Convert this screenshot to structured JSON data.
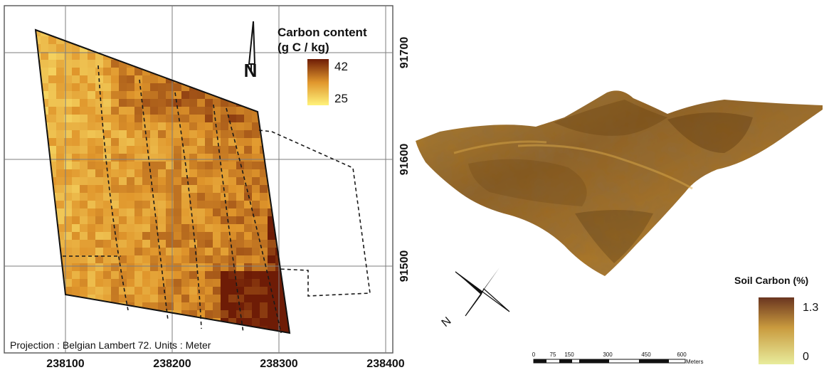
{
  "left_map": {
    "x_ticks": [
      "238100",
      "238200",
      "238300",
      "238400"
    ],
    "y_ticks": [
      "91700",
      "91600",
      "91500"
    ],
    "legend": {
      "title_line1": "Carbon content",
      "title_line2": "(g C / kg)",
      "max_label": "42",
      "min_label": "25",
      "min_color": "#fff27a",
      "mid_color": "#e0962c",
      "max_color": "#6e1c06"
    },
    "north_label": "N",
    "footer": "Projection : Belgian Lambert 72. Units : Meter"
  },
  "right_map": {
    "legend": {
      "title": "Soil Carbon (%)",
      "max_label": "1.3",
      "min_label": "0",
      "min_color": "#e8ec9c",
      "max_color": "#6a3520"
    },
    "compass_label": "N",
    "scale_labels": [
      "0",
      "75",
      "150",
      "300",
      "450",
      "600"
    ],
    "scale_unit": "Meters"
  }
}
